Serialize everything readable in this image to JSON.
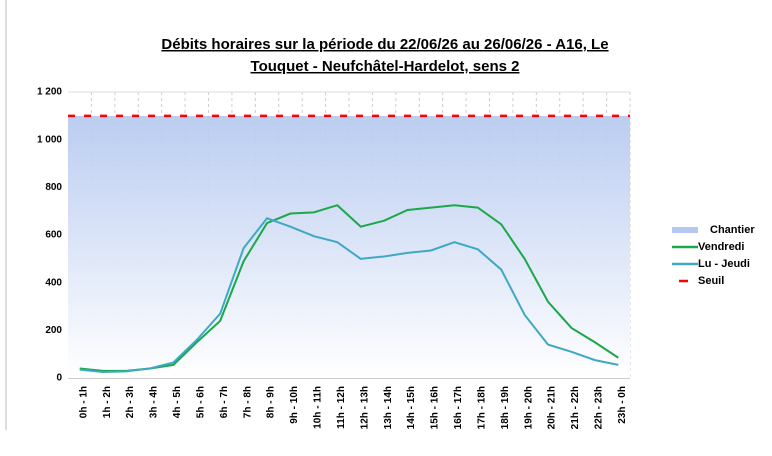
{
  "chart_data": {
    "type": "line",
    "title_lines": [
      "Débits horaires sur la période du 22/06/26 au 26/06/26 - A16, Le",
      "Touquet - Neufchâtel-Hardelot, sens 2"
    ],
    "categories": [
      "0h - 1h",
      "1h - 2h",
      "2h - 3h",
      "3h - 4h",
      "4h - 5h",
      "5h - 6h",
      "6h - 7h",
      "7h - 8h",
      "8h - 9h",
      "9h - 10h",
      "10h - 11h",
      "11h - 12h",
      "12h - 13h",
      "13h - 14h",
      "14h - 15h",
      "15h - 16h",
      "16h - 17h",
      "17h - 18h",
      "18h - 19h",
      "19h - 20h",
      "20h - 21h",
      "21h - 22h",
      "22h - 23h",
      "23h - 0h"
    ],
    "series": [
      {
        "name": "Chantier",
        "color": "#b4c8f0",
        "style": "area",
        "values": [
          1100,
          1100,
          1100,
          1100,
          1100,
          1100,
          1100,
          1100,
          1100,
          1100,
          1100,
          1100,
          1100,
          1100,
          1100,
          1100,
          1100,
          1100,
          1100,
          1100,
          1100,
          1100,
          1100,
          1100
        ]
      },
      {
        "name": "Vendredi",
        "color": "#1aa84a",
        "style": "line",
        "values": [
          40,
          30,
          30,
          40,
          55,
          150,
          240,
          490,
          650,
          690,
          695,
          725,
          635,
          660,
          705,
          715,
          725,
          715,
          645,
          500,
          320,
          210,
          150,
          85
        ]
      },
      {
        "name": "Lu - Jeudi",
        "color": "#3fa8c4",
        "style": "line",
        "values": [
          35,
          25,
          28,
          40,
          65,
          160,
          270,
          545,
          670,
          635,
          595,
          570,
          500,
          510,
          525,
          535,
          570,
          540,
          455,
          265,
          140,
          110,
          75,
          55
        ]
      },
      {
        "name": "Seuil",
        "color": "#ff0000",
        "style": "dashed",
        "values": [
          1100,
          1100,
          1100,
          1100,
          1100,
          1100,
          1100,
          1100,
          1100,
          1100,
          1100,
          1100,
          1100,
          1100,
          1100,
          1100,
          1100,
          1100,
          1100,
          1100,
          1100,
          1100,
          1100,
          1100
        ]
      }
    ],
    "ylim": [
      0,
      1200
    ],
    "yticks": [
      0,
      200,
      400,
      600,
      800,
      {
        "value": 1000,
        "label": "1 000"
      },
      {
        "value": 1200,
        "label": "1 200"
      }
    ],
    "grid": true
  }
}
